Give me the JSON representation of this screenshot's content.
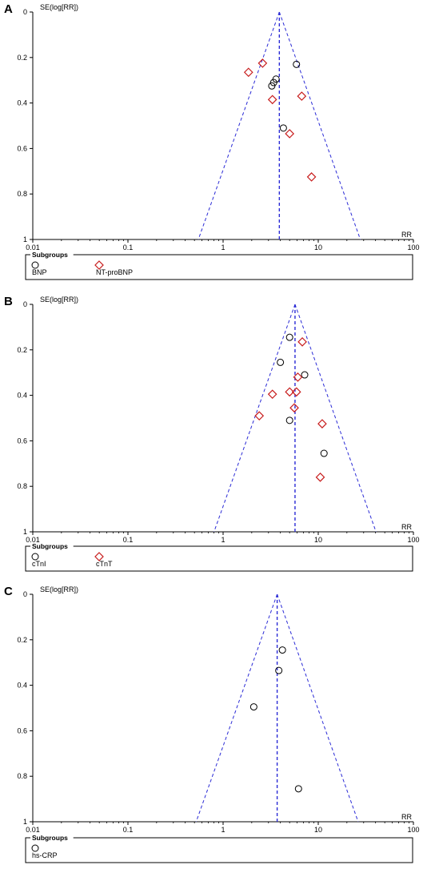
{
  "figure": {
    "colors": {
      "funnel": "#2b2bd6",
      "circle_marker": "#000000",
      "diamond_marker": "#c81e1e",
      "axis": "#000000"
    }
  },
  "chart_data": [
    {
      "panel_label": "A",
      "type": "scatter",
      "subtype": "funnel-plot",
      "ylabel": "SE(log[RR])",
      "xlabel": "RR",
      "x_scale": "log",
      "xlim": [
        0.01,
        100
      ],
      "ylim": [
        0,
        1
      ],
      "y_inverted": true,
      "x_ticks": [
        "0.01",
        "0.1",
        "1",
        "10",
        "100"
      ],
      "y_ticks": [
        "0",
        "0.2",
        "0.4",
        "0.6",
        "0.8",
        "1"
      ],
      "pooled_rr": 3.9,
      "legend_title": "Subgroups",
      "series": [
        {
          "name": "BNP",
          "marker": "circle",
          "points": [
            [
              5.9,
              0.23
            ],
            [
              3.6,
              0.295
            ],
            [
              3.4,
              0.31
            ],
            [
              3.25,
              0.325
            ],
            [
              4.3,
              0.51
            ]
          ]
        },
        {
          "name": "NT-proBNP",
          "marker": "diamond",
          "points": [
            [
              2.6,
              0.225
            ],
            [
              1.85,
              0.265
            ],
            [
              6.7,
              0.37
            ],
            [
              3.3,
              0.385
            ],
            [
              5.0,
              0.535
            ],
            [
              8.5,
              0.725
            ]
          ]
        }
      ]
    },
    {
      "panel_label": "B",
      "type": "scatter",
      "subtype": "funnel-plot",
      "ylabel": "SE(log[RR])",
      "xlabel": "RR",
      "x_scale": "log",
      "xlim": [
        0.01,
        100
      ],
      "ylim": [
        0,
        1
      ],
      "y_inverted": true,
      "x_ticks": [
        "0.01",
        "0.1",
        "1",
        "10",
        "100"
      ],
      "y_ticks": [
        "0",
        "0.2",
        "0.4",
        "0.6",
        "0.8",
        "1"
      ],
      "pooled_rr": 5.7,
      "legend_title": "Subgroups",
      "series": [
        {
          "name": "cTnI",
          "marker": "circle",
          "points": [
            [
              5.0,
              0.145
            ],
            [
              4.0,
              0.255
            ],
            [
              7.2,
              0.31
            ],
            [
              5.0,
              0.51
            ],
            [
              11.5,
              0.655
            ]
          ]
        },
        {
          "name": "cTnT",
          "marker": "diamond",
          "points": [
            [
              6.8,
              0.165
            ],
            [
              6.1,
              0.32
            ],
            [
              5.9,
              0.385
            ],
            [
              5.0,
              0.385
            ],
            [
              3.3,
              0.395
            ],
            [
              5.6,
              0.455
            ],
            [
              2.4,
              0.49
            ],
            [
              11.0,
              0.525
            ],
            [
              10.5,
              0.76
            ]
          ]
        }
      ]
    },
    {
      "panel_label": "C",
      "type": "scatter",
      "subtype": "funnel-plot",
      "ylabel": "SE(log[RR])",
      "xlabel": "RR",
      "x_scale": "log",
      "xlim": [
        0.01,
        100
      ],
      "ylim": [
        0,
        1
      ],
      "y_inverted": true,
      "x_ticks": [
        "0.01",
        "0.1",
        "1",
        "10",
        "100"
      ],
      "y_ticks": [
        "0",
        "0.2",
        "0.4",
        "0.6",
        "0.8",
        "1"
      ],
      "pooled_rr": 3.7,
      "legend_title": "Subgroups",
      "series": [
        {
          "name": "hs-CRP",
          "marker": "circle",
          "points": [
            [
              4.2,
              0.245
            ],
            [
              3.85,
              0.335
            ],
            [
              2.1,
              0.495
            ],
            [
              6.2,
              0.855
            ]
          ]
        }
      ]
    }
  ]
}
